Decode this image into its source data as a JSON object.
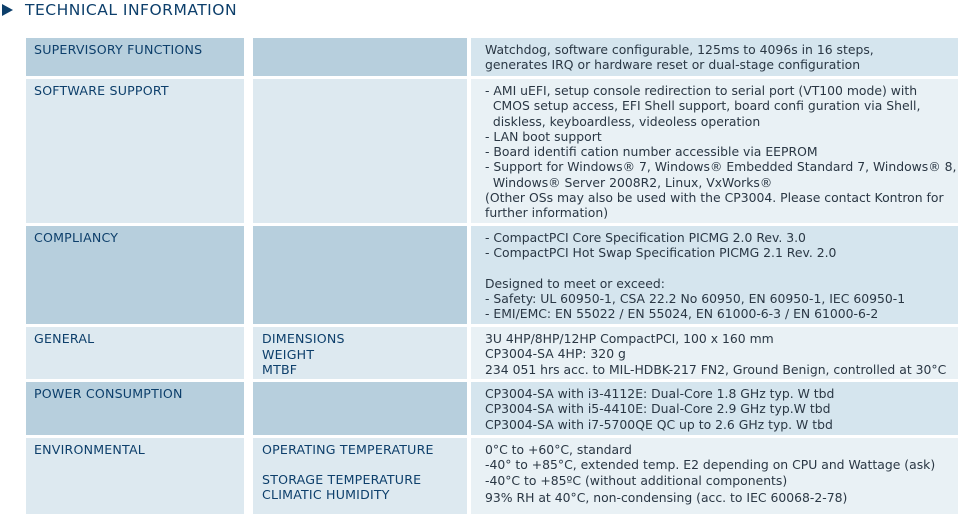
{
  "section": {
    "title": "TECHNICAL INFORMATION"
  },
  "rows": [
    {
      "category": "SUPERVISORY FUNCTIONS",
      "labels": [],
      "lines": [
        "Watchdog, software configurable, 125ms to 4096s in 16 steps,",
        "generates IRQ or hardware reset or dual-stage configuration"
      ]
    },
    {
      "category": "SOFTWARE SUPPORT",
      "labels": [],
      "lines": [
        "- AMI uEFI, setup console redirection to serial port (VT100 mode) with",
        "  CMOS setup access, EFI Shell support, board confi guration via Shell,",
        "  diskless, keyboardless, videoless operation",
        "- LAN boot support",
        "- Board identifi cation number accessible via EEPROM",
        "- Support for Windows® 7, Windows® Embedded Standard 7, Windows® 8,",
        "  Windows® Server 2008R2, Linux, VxWorks®",
        "(Other OSs may also be used with the CP3004. Please contact Kontron for",
        "further information)"
      ]
    },
    {
      "category": "COMPLIANCY",
      "labels": [],
      "lines": [
        "- CompactPCI Core Specification PICMG 2.0 Rev. 3.0",
        "- CompactPCI Hot Swap Specification PICMG 2.1 Rev. 2.0",
        "",
        "Designed to meet or exceed:",
        "- Safety: UL 60950-1, CSA 22.2 No 60950, EN 60950-1, IEC 60950-1",
        "- EMI/EMC: EN 55022 / EN 55024, EN 61000-6-3 / EN 61000-6-2"
      ]
    },
    {
      "category": "GENERAL",
      "labels": [
        "DIMENSIONS",
        "WEIGHT",
        "MTBF"
      ],
      "lines": [
        "3U 4HP/8HP/12HP CompactPCI, 100 x 160 mm",
        "CP3004-SA 4HP: 320 g",
        "234 051 hrs acc. to MIL-HDBK-217 FN2, Ground Benign, controlled at 30°C"
      ]
    },
    {
      "category": "POWER CONSUMPTION",
      "labels": [],
      "lines": [
        "CP3004-SA with i3-4112E: Dual-Core 1.8 GHz typ. W tbd",
        "CP3004-SA with i5-4410E: Dual-Core 2.9 GHz typ.W tbd",
        "CP3004-SA with i7-5700QE QC up to 2.6 GHz typ. W tbd"
      ]
    },
    {
      "category": "ENVIRONMENTAL",
      "labels": [
        "OPERATING TEMPERATURE",
        "",
        "STORAGE TEMPERATURE",
        "CLIMATIC HUMIDITY"
      ],
      "lines": [
        "0°C to +60°C, standard",
        "-40° to +85°C, extended temp. E2 depending on CPU and Wattage (ask)",
        "-40°C to +85ºC (without additional components)",
        "93% RH at 40°C, non-condensing (acc. to IEC 60068-2-78)"
      ]
    }
  ]
}
